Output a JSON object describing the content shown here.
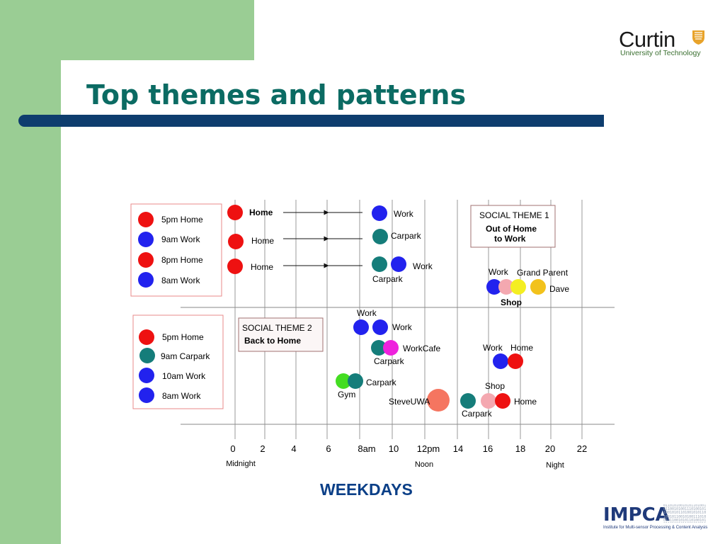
{
  "title": "Top themes and patterns",
  "logo": {
    "name": "Curtin",
    "subtitle": "University of Technology",
    "icon": "shield-crest-icon"
  },
  "axis": {
    "ticks": [
      "0",
      "2",
      "4",
      "6",
      "8am",
      "10",
      "12pm",
      "14",
      "16",
      "18",
      "20",
      "22"
    ],
    "period_labels": [
      "Midnight",
      "Noon",
      "Night"
    ],
    "caption": "WEEKDAYS"
  },
  "footer_logo": {
    "name": "IMPCA",
    "subtitle": "Institute for Multi-sensor Processing & Content Analysis",
    "bits": "0110101001010110100101100101001110100101100101011010010101101001011001010011101001011001010110100101011010010110010100111010010110010101101001010110"
  },
  "legend_boxes": [
    {
      "items": [
        {
          "label": "5pm Home",
          "color": "#ee1111"
        },
        {
          "label": "9am Work",
          "color": "#2222ee"
        },
        {
          "label": "8pm Home",
          "color": "#ee1111"
        },
        {
          "label": "8am Work",
          "color": "#2222ee"
        }
      ]
    },
    {
      "items": [
        {
          "label": "5pm Home",
          "color": "#ee1111"
        },
        {
          "label": "9am Carpark",
          "color": "#157d7a"
        },
        {
          "label": "10am Work",
          "color": "#2222ee"
        },
        {
          "label": "8am Work",
          "color": "#2222ee"
        }
      ]
    }
  ],
  "theme_boxes": [
    {
      "heading": "SOCIAL THEME 1",
      "name": "Out of Home to Work"
    },
    {
      "heading": "SOCIAL THEME 2",
      "name": "Back to Home"
    }
  ],
  "places": [
    "Home",
    "Work",
    "Carpark",
    "Shop",
    "Gym",
    "SteveUWA",
    "WorkCafe",
    "Grand Parent",
    "Dave"
  ],
  "colors": {
    "home": "#ee1111",
    "work": "#2222ee",
    "carpark": "#157d7a",
    "gym": "#44dd22",
    "cafe": "#ee22dd",
    "shop": "#f4a8b0",
    "grandparent": "#f4ee22",
    "dave": "#f2c21c",
    "steveuwa": "#f57560",
    "gridline": "#9a9a9a",
    "legend_border": "#e88a8a",
    "theme_border": "#a07070"
  }
}
